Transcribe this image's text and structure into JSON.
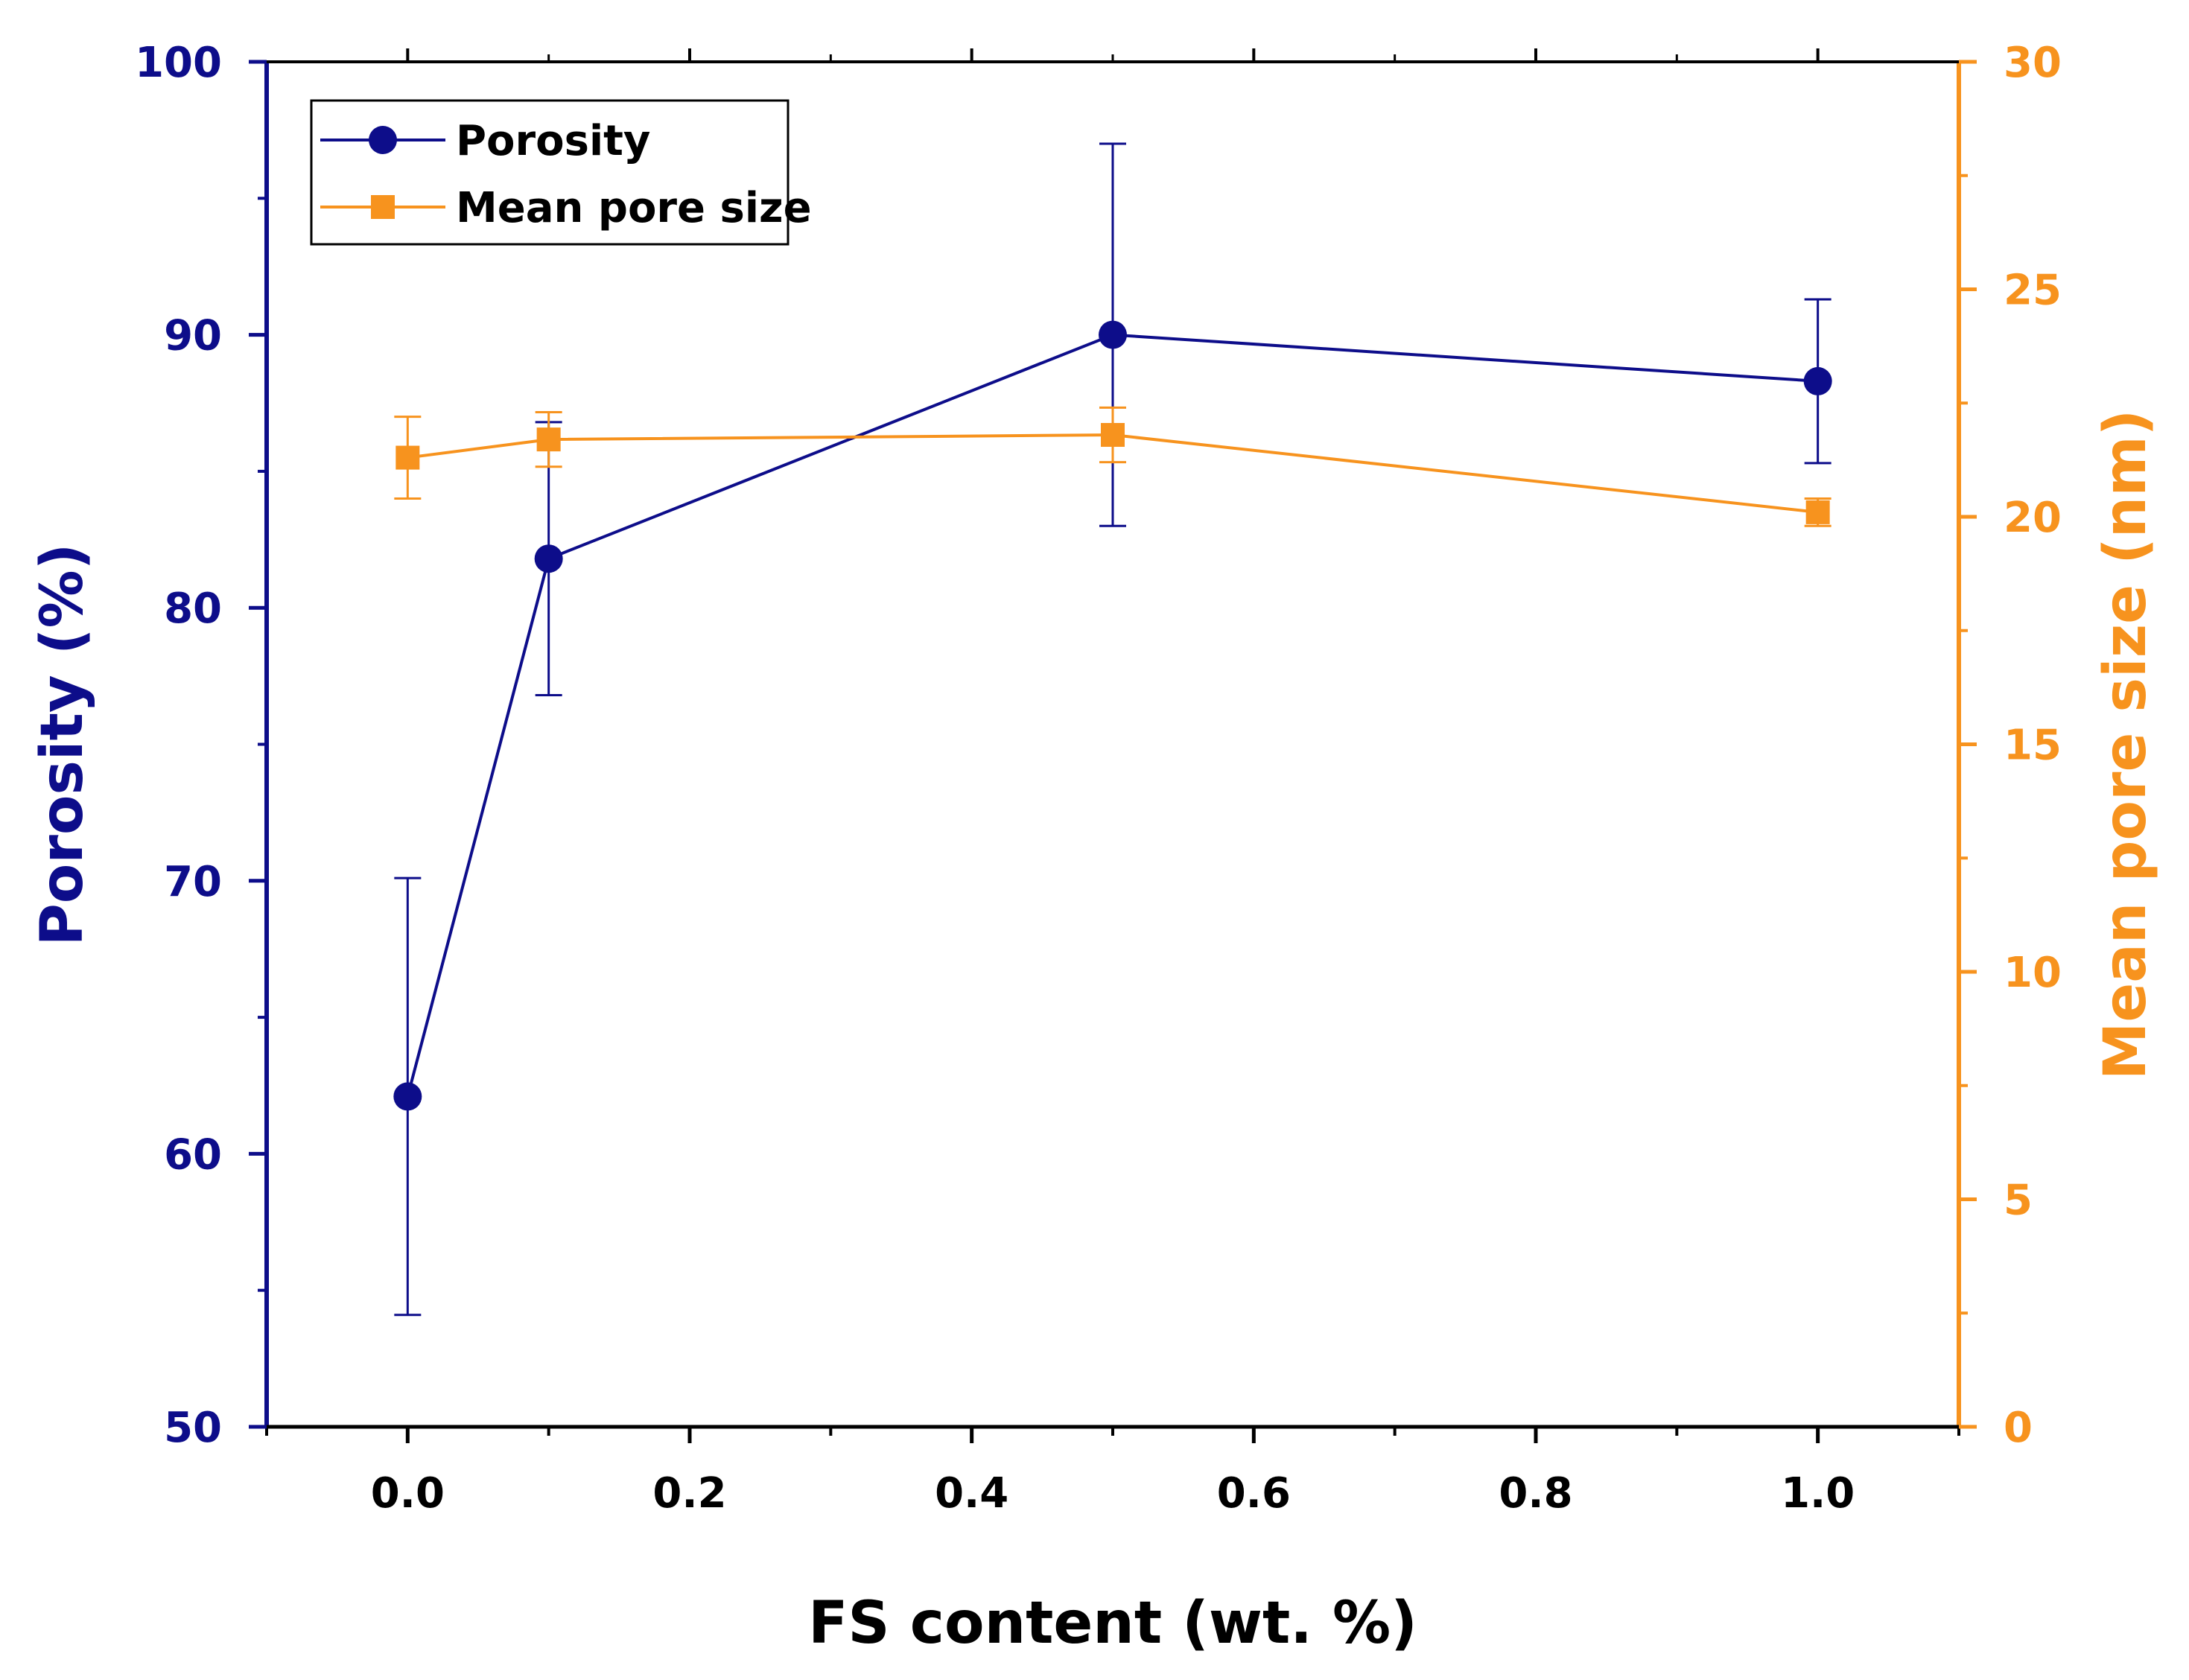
{
  "chart_data": {
    "type": "line",
    "xlabel": "FS content (wt. %)",
    "ylabel_left": "Porosity (%)",
    "ylabel_right": "Mean pore size (nm)",
    "xlim": [
      -0.1,
      1.1
    ],
    "ylim_left": [
      50,
      100
    ],
    "ylim_right": [
      0,
      30
    ],
    "x_ticks": [
      "0.0",
      "0.2",
      "0.4",
      "0.6",
      "0.8",
      "1.0"
    ],
    "y_left_ticks": [
      "50",
      "60",
      "70",
      "80",
      "90",
      "100"
    ],
    "y_right_ticks": [
      "0",
      "5",
      "10",
      "15",
      "20",
      "25",
      "30"
    ],
    "legend_position": "top-left",
    "series": [
      {
        "name": "Porosity",
        "axis": "left",
        "color": "#0d0d8a",
        "marker": "circle",
        "x": [
          0.0,
          0.1,
          0.5,
          1.0
        ],
        "values": [
          62.1,
          81.8,
          90.0,
          88.3
        ],
        "errors": [
          8.0,
          5.0,
          7.0,
          3.0
        ]
      },
      {
        "name": "Mean pore size",
        "axis": "right",
        "color": "#f7931e",
        "marker": "square",
        "x": [
          0.0,
          0.1,
          0.5,
          1.0
        ],
        "values": [
          21.3,
          21.7,
          21.8,
          20.1
        ],
        "errors": [
          0.9,
          0.6,
          0.6,
          0.3
        ]
      }
    ]
  }
}
